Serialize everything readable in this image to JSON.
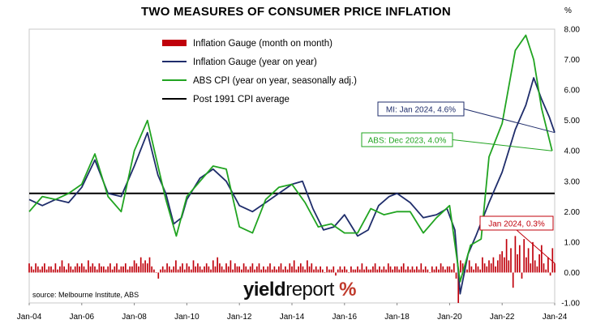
{
  "title": "TWO MEASURES OF CONSUMER PRICE INFLATION",
  "unit": "%",
  "source": "source: Melbourne Institute, ABS",
  "brand": {
    "part1": "yield",
    "part2": "report",
    "part3": " %"
  },
  "colors": {
    "mom": "#c0000b",
    "mi_yoy": "#1f2d6b",
    "abs": "#21a421",
    "avg": "#000000",
    "callout_mi": "#1f2d6b",
    "callout_abs": "#21a421",
    "callout_mom": "#c0000b"
  },
  "legend": [
    {
      "label": "Inflation Gauge (month on month)",
      "kind": "bar",
      "color_key": "mom"
    },
    {
      "label": "Inflation Gauge (year on year)",
      "kind": "line",
      "color_key": "mi_yoy"
    },
    {
      "label": "ABS CPI (year on year, seasonally adj.)",
      "kind": "line",
      "color_key": "abs"
    },
    {
      "label": "Post 1991 CPI average",
      "kind": "line",
      "color_key": "avg"
    }
  ],
  "callouts": [
    {
      "text": "MI: Jan 2024, 4.6%",
      "color_key": "callout_mi"
    },
    {
      "text": "ABS: Dec 2023, 4.0%",
      "color_key": "callout_abs"
    },
    {
      "text": "Jan 2024, 0.3%",
      "color_key": "callout_mom"
    }
  ],
  "chart_data": {
    "type": "line",
    "title": "TWO MEASURES OF CONSUMER PRICE INFLATION",
    "xlabel": "",
    "ylabel": "%",
    "x_ticks": [
      "Jan-04",
      "Jan-06",
      "Jan-08",
      "Jan-10",
      "Jan-12",
      "Jan-14",
      "Jan-16",
      "Jan-18",
      "Jan-20",
      "Jan-22",
      "Jan-24"
    ],
    "xlim": [
      "Jan-04",
      "Jan-24"
    ],
    "ylim": [
      -1.0,
      8.0
    ],
    "y_ticks": [
      "-1.00",
      "0.00",
      "1.00",
      "2.00",
      "3.00",
      "4.00",
      "5.00",
      "6.00",
      "7.00",
      "8.00"
    ],
    "grid": false,
    "legend_position": "top-center",
    "series": [
      {
        "name": "Inflation Gauge (year on year)",
        "type": "line",
        "color_key": "mi_yoy",
        "points": [
          [
            2004.0,
            2.4
          ],
          [
            2004.5,
            2.2
          ],
          [
            2005.0,
            2.4
          ],
          [
            2005.5,
            2.3
          ],
          [
            2006.0,
            2.8
          ],
          [
            2006.5,
            3.7
          ],
          [
            2007.0,
            2.6
          ],
          [
            2007.5,
            2.5
          ],
          [
            2008.0,
            3.5
          ],
          [
            2008.5,
            4.6
          ],
          [
            2008.9,
            3.2
          ],
          [
            2009.2,
            2.6
          ],
          [
            2009.5,
            1.6
          ],
          [
            2009.8,
            1.8
          ],
          [
            2010.0,
            2.4
          ],
          [
            2010.5,
            3.1
          ],
          [
            2011.0,
            3.4
          ],
          [
            2011.5,
            3.0
          ],
          [
            2012.0,
            2.2
          ],
          [
            2012.5,
            2.0
          ],
          [
            2013.0,
            2.3
          ],
          [
            2013.5,
            2.6
          ],
          [
            2014.0,
            2.9
          ],
          [
            2014.4,
            3.0
          ],
          [
            2014.8,
            2.1
          ],
          [
            2015.2,
            1.4
          ],
          [
            2015.6,
            1.5
          ],
          [
            2016.0,
            1.9
          ],
          [
            2016.5,
            1.2
          ],
          [
            2016.9,
            1.4
          ],
          [
            2017.3,
            2.2
          ],
          [
            2017.7,
            2.5
          ],
          [
            2018.0,
            2.6
          ],
          [
            2018.5,
            2.3
          ],
          [
            2019.0,
            1.8
          ],
          [
            2019.5,
            1.9
          ],
          [
            2019.9,
            2.1
          ],
          [
            2020.2,
            1.4
          ],
          [
            2020.4,
            -0.7
          ],
          [
            2020.7,
            0.6
          ],
          [
            2021.0,
            1.2
          ],
          [
            2021.5,
            2.3
          ],
          [
            2022.0,
            3.3
          ],
          [
            2022.5,
            4.7
          ],
          [
            2022.9,
            5.5
          ],
          [
            2023.2,
            6.4
          ],
          [
            2023.5,
            5.7
          ],
          [
            2023.8,
            5.1
          ],
          [
            2024.0,
            4.6
          ]
        ]
      },
      {
        "name": "ABS CPI (year on year, seasonally adj.)",
        "type": "line",
        "color_key": "abs",
        "points": [
          [
            2004.0,
            2.0
          ],
          [
            2004.5,
            2.5
          ],
          [
            2005.0,
            2.4
          ],
          [
            2005.5,
            2.6
          ],
          [
            2006.0,
            2.9
          ],
          [
            2006.5,
            3.9
          ],
          [
            2007.0,
            2.5
          ],
          [
            2007.5,
            2.0
          ],
          [
            2008.0,
            4.0
          ],
          [
            2008.5,
            5.0
          ],
          [
            2008.9,
            3.5
          ],
          [
            2009.2,
            2.4
          ],
          [
            2009.6,
            1.2
          ],
          [
            2010.0,
            2.5
          ],
          [
            2010.5,
            3.0
          ],
          [
            2011.0,
            3.5
          ],
          [
            2011.5,
            3.4
          ],
          [
            2012.0,
            1.5
          ],
          [
            2012.5,
            1.3
          ],
          [
            2013.0,
            2.4
          ],
          [
            2013.5,
            2.8
          ],
          [
            2014.0,
            2.9
          ],
          [
            2014.5,
            2.3
          ],
          [
            2015.0,
            1.5
          ],
          [
            2015.5,
            1.6
          ],
          [
            2016.0,
            1.3
          ],
          [
            2016.5,
            1.3
          ],
          [
            2017.0,
            2.1
          ],
          [
            2017.5,
            1.9
          ],
          [
            2018.0,
            2.0
          ],
          [
            2018.5,
            2.0
          ],
          [
            2019.0,
            1.3
          ],
          [
            2019.5,
            1.8
          ],
          [
            2020.0,
            2.2
          ],
          [
            2020.4,
            -0.3
          ],
          [
            2020.8,
            0.9
          ],
          [
            2021.2,
            1.1
          ],
          [
            2021.5,
            3.8
          ],
          [
            2022.0,
            4.9
          ],
          [
            2022.5,
            7.3
          ],
          [
            2022.9,
            7.8
          ],
          [
            2023.2,
            7.0
          ],
          [
            2023.5,
            5.4
          ],
          [
            2023.9,
            4.0
          ]
        ]
      },
      {
        "name": "Post 1991 CPI average",
        "type": "hline",
        "color_key": "avg",
        "value": 2.6
      },
      {
        "name": "Inflation Gauge (month on month)",
        "type": "bar",
        "color_key": "mom",
        "x_start": 2004.0,
        "x_step": 0.0833333,
        "values": [
          0.3,
          0.2,
          0.1,
          0.3,
          0.2,
          0.1,
          0.2,
          0.3,
          0.1,
          0.2,
          0.2,
          0.1,
          0.3,
          0.1,
          0.2,
          0.4,
          0.2,
          0.1,
          0.3,
          0.2,
          0.1,
          0.2,
          0.3,
          0.2,
          0.3,
          0.2,
          0.1,
          0.4,
          0.2,
          0.3,
          0.2,
          0.1,
          0.3,
          0.2,
          0.2,
          0.1,
          0.2,
          0.3,
          0.1,
          0.2,
          0.3,
          0.1,
          0.2,
          0.2,
          0.3,
          0.1,
          0.2,
          0.2,
          0.4,
          0.3,
          0.2,
          0.5,
          0.3,
          0.4,
          0.3,
          0.5,
          0.2,
          0.1,
          0.0,
          -0.2,
          0.1,
          0.2,
          0.1,
          0.3,
          0.2,
          0.1,
          0.2,
          0.4,
          0.1,
          0.2,
          0.3,
          0.1,
          0.3,
          0.2,
          0.1,
          0.4,
          0.2,
          0.3,
          0.2,
          0.1,
          0.2,
          0.3,
          0.2,
          0.1,
          0.4,
          0.2,
          0.5,
          0.3,
          0.2,
          0.1,
          0.3,
          0.2,
          0.4,
          0.1,
          0.3,
          0.2,
          0.2,
          0.1,
          0.3,
          0.2,
          0.1,
          0.2,
          0.3,
          0.1,
          0.2,
          0.3,
          0.1,
          0.2,
          0.1,
          0.2,
          0.3,
          0.1,
          0.2,
          0.1,
          0.2,
          0.3,
          0.1,
          0.2,
          0.1,
          0.3,
          0.2,
          0.4,
          0.1,
          0.2,
          0.3,
          0.2,
          0.1,
          0.4,
          0.2,
          0.3,
          0.1,
          0.2,
          0.1,
          0.2,
          0.1,
          0.0,
          0.2,
          0.1,
          0.1,
          0.2,
          -0.1,
          0.1,
          0.2,
          0.1,
          0.2,
          0.1,
          0.0,
          0.2,
          0.1,
          0.1,
          0.2,
          0.1,
          0.3,
          0.1,
          0.2,
          0.1,
          0.1,
          0.2,
          0.3,
          0.1,
          0.2,
          0.1,
          0.2,
          0.1,
          0.3,
          0.2,
          0.1,
          0.2,
          0.2,
          0.1,
          0.2,
          0.3,
          0.1,
          0.2,
          0.1,
          0.2,
          0.1,
          0.2,
          0.1,
          0.3,
          0.1,
          0.2,
          0.1,
          0.0,
          0.2,
          0.1,
          0.2,
          0.1,
          0.3,
          0.2,
          0.1,
          0.2,
          0.2,
          0.1,
          0.3,
          -0.2,
          -1.0,
          0.4,
          0.3,
          0.2,
          0.1,
          0.4,
          0.2,
          0.1,
          0.3,
          0.2,
          0.1,
          0.5,
          0.3,
          0.2,
          0.4,
          0.3,
          0.5,
          0.2,
          0.4,
          0.6,
          0.7,
          0.5,
          1.1,
          0.4,
          0.8,
          -0.5,
          1.2,
          0.6,
          0.9,
          -0.2,
          1.1,
          0.5,
          0.8,
          0.3,
          1.0,
          0.4,
          0.2,
          0.6,
          0.9,
          0.3,
          0.1,
          0.5,
          -0.1,
          0.8,
          0.3
        ]
      }
    ]
  }
}
